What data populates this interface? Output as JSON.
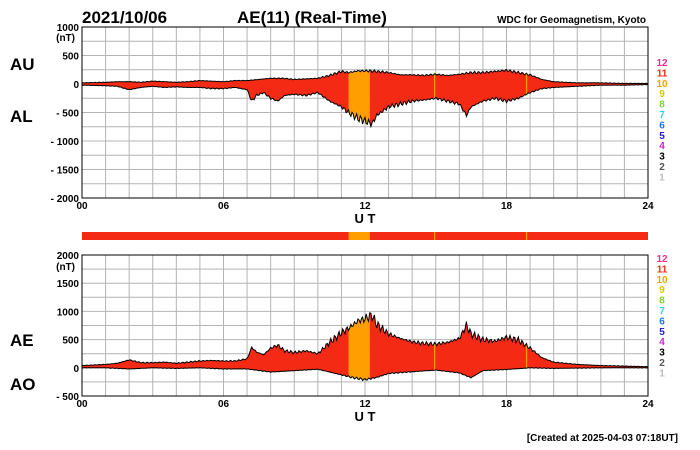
{
  "header": {
    "date": "2021/10/06",
    "title": "AE(11) (Real-Time)",
    "source": "WDC for Geomagnetism, Kyoto"
  },
  "footer": {
    "created": "[Created at 2025-04-03 07:18UT]"
  },
  "colors": {
    "main_fill": "#f52a14",
    "highlight_fill": "#ff9e00",
    "grid": "#b4b4b4",
    "curve": "#000000",
    "station_count_levels": {
      "12": "#ff2a8a",
      "11": "#f52a14",
      "10": "#ff9e00",
      "9": "#d8c800",
      "8": "#7cd82a",
      "7": "#2ad8d8",
      "6": "#1e78f0",
      "5": "#2020c8",
      "4": "#d020d0",
      "3": "#000000",
      "2": "#555555",
      "1": "#bbbbbb"
    }
  },
  "chart_data": [
    {
      "id": "au_al",
      "type": "area",
      "ylabel_top": "AU",
      "ylabel_bottom": "AL",
      "unit": "(nT)",
      "xlabel": "U T",
      "ylim": [
        -2000,
        1000
      ],
      "yticks": [
        1000,
        500,
        0,
        -500,
        -1000,
        -1500,
        -2000
      ],
      "ytick_labels": [
        "1000",
        "500",
        "0",
        "- 500",
        "- 1000",
        "- 1500",
        "- 2000"
      ],
      "xlim": [
        0,
        24
      ],
      "xticks": [
        0,
        6,
        12,
        18,
        24
      ],
      "xtick_labels": [
        "00",
        "06",
        "12",
        "18",
        "24"
      ],
      "series": [
        {
          "name": "AU",
          "x": [
            0,
            1,
            1.5,
            2,
            2.5,
            3,
            3.5,
            4,
            4.5,
            5,
            5.5,
            6,
            6.5,
            7,
            7.5,
            8,
            8.5,
            9,
            9.5,
            10,
            10.5,
            11,
            11.3,
            11.7,
            12.2,
            12.5,
            13,
            13.5,
            14,
            14.5,
            15,
            15.5,
            16,
            16.5,
            17,
            17.5,
            18,
            18.5,
            19,
            19.5,
            20,
            20.5,
            21,
            22,
            23,
            24
          ],
          "values": [
            20,
            30,
            40,
            40,
            30,
            50,
            40,
            30,
            40,
            60,
            50,
            40,
            60,
            60,
            80,
            100,
            100,
            80,
            90,
            100,
            150,
            220,
            200,
            230,
            230,
            220,
            200,
            160,
            160,
            150,
            170,
            150,
            170,
            200,
            200,
            220,
            240,
            200,
            160,
            80,
            40,
            30,
            20,
            20,
            10,
            10
          ]
        },
        {
          "name": "AL",
          "x": [
            0,
            1,
            1.5,
            2,
            2.5,
            3,
            3.5,
            4,
            4.5,
            5,
            5.5,
            6,
            6.5,
            7,
            7.2,
            7.4,
            7.7,
            8,
            8.3,
            8.6,
            9,
            9.5,
            10,
            10.5,
            11,
            11.3,
            11.7,
            12,
            12.3,
            12.5,
            13,
            13.5,
            14,
            14.5,
            15,
            15.5,
            16,
            16.3,
            16.5,
            17,
            17.5,
            18,
            18.5,
            19,
            19.5,
            20,
            20.5,
            21,
            22,
            23,
            24
          ],
          "values": [
            -20,
            -30,
            -40,
            -100,
            -60,
            -40,
            -60,
            -50,
            -60,
            -60,
            -80,
            -80,
            -60,
            -100,
            -300,
            -200,
            -150,
            -250,
            -300,
            -200,
            -180,
            -200,
            -150,
            -300,
            -400,
            -500,
            -600,
            -650,
            -700,
            -550,
            -400,
            -350,
            -300,
            -280,
            -250,
            -300,
            -350,
            -550,
            -400,
            -300,
            -250,
            -300,
            -250,
            -150,
            -80,
            -60,
            -50,
            -40,
            -20,
            -20,
            -10
          ]
        }
      ]
    },
    {
      "id": "ae_ao",
      "type": "area",
      "ylabel_top": "AE",
      "ylabel_bottom": "AO",
      "unit": "(nT)",
      "xlabel": "U T",
      "ylim": [
        -500,
        2000
      ],
      "yticks": [
        2000,
        1500,
        1000,
        500,
        0,
        -500
      ],
      "ytick_labels": [
        "2000",
        "1500",
        "1000",
        "500",
        "0",
        "- 500"
      ],
      "xlim": [
        0,
        24
      ],
      "xticks": [
        0,
        6,
        12,
        18,
        24
      ],
      "xtick_labels": [
        "00",
        "06",
        "12",
        "18",
        "24"
      ],
      "series": [
        {
          "name": "AE",
          "x": [
            0,
            1,
            1.5,
            2,
            2.5,
            3,
            3.5,
            4,
            4.5,
            5,
            5.5,
            6,
            6.5,
            7,
            7.2,
            7.4,
            7.7,
            8,
            8.3,
            8.6,
            9,
            9.5,
            10,
            10.5,
            11,
            11.3,
            11.7,
            12,
            12.3,
            12.5,
            13,
            13.5,
            14,
            14.5,
            15,
            15.5,
            16,
            16.3,
            16.5,
            17,
            17.5,
            18,
            18.5,
            19,
            19.5,
            20,
            20.5,
            21,
            22,
            23,
            24
          ],
          "values": [
            40,
            60,
            80,
            140,
            90,
            90,
            100,
            80,
            100,
            120,
            130,
            120,
            120,
            160,
            360,
            280,
            230,
            350,
            400,
            300,
            270,
            300,
            250,
            450,
            620,
            700,
            830,
            870,
            930,
            770,
            600,
            520,
            460,
            430,
            420,
            450,
            520,
            750,
            600,
            500,
            470,
            540,
            490,
            350,
            180,
            100,
            80,
            60,
            40,
            30,
            20
          ]
        },
        {
          "name": "AO",
          "x": [
            0,
            1,
            2,
            3,
            4,
            5,
            6,
            7,
            8,
            9,
            10,
            10.5,
            11,
            11.5,
            12,
            12.5,
            13,
            14,
            15,
            16,
            16.5,
            17,
            18,
            19,
            20,
            21,
            22,
            23,
            24
          ],
          "values": [
            0,
            0,
            -20,
            0,
            -10,
            0,
            -20,
            -20,
            -75,
            -50,
            -25,
            -75,
            -125,
            -175,
            -210,
            -170,
            -100,
            -70,
            -40,
            -90,
            -175,
            -50,
            -30,
            0,
            -10,
            -5,
            0,
            0,
            0
          ]
        }
      ]
    }
  ],
  "station_bar": {
    "segments": [
      {
        "from": 0,
        "to": 11.3,
        "stations": "11"
      },
      {
        "from": 11.3,
        "to": 12.2,
        "stations": "10"
      },
      {
        "from": 12.2,
        "to": 24,
        "stations": "11"
      }
    ]
  },
  "station_legend": [
    "12",
    "11",
    "10",
    "9",
    "8",
    "7",
    "6",
    "5",
    "4",
    "3",
    "2",
    "1"
  ]
}
